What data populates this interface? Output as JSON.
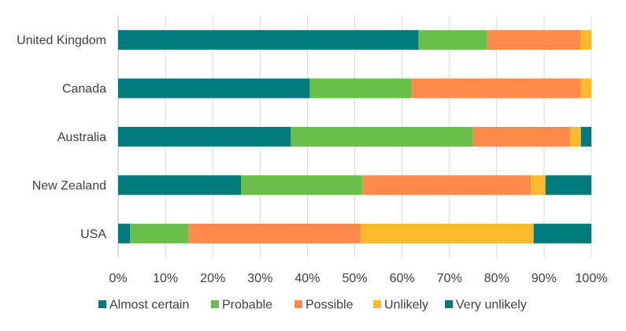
{
  "chart_data": {
    "type": "bar",
    "orientation": "horizontal",
    "stacked": "percent",
    "categories": [
      "United Kingdom",
      "Canada",
      "Australia",
      "New Zealand",
      "USA"
    ],
    "series": [
      {
        "name": "Almost certain",
        "color": "#007a7a",
        "values": [
          63.5,
          40.5,
          36.5,
          26.0,
          2.5
        ]
      },
      {
        "name": "Probable",
        "color": "#6abf4b",
        "values": [
          14.5,
          21.5,
          38.5,
          25.7,
          12.3
        ]
      },
      {
        "name": "Possible",
        "color": "#ff8a4c",
        "values": [
          19.7,
          35.8,
          20.5,
          35.5,
          36.5
        ]
      },
      {
        "name": "Unlikely",
        "color": "#fdb92c",
        "values": [
          2.3,
          2.2,
          2.3,
          3.1,
          36.5
        ]
      },
      {
        "name": "Very unlikely",
        "color": "#007a7a",
        "values": [
          0.0,
          0.0,
          2.2,
          9.7,
          12.2
        ]
      }
    ],
    "xlim": [
      0,
      100
    ],
    "xticks": [
      "0%",
      "10%",
      "20%",
      "30%",
      "40%",
      "50%",
      "60%",
      "70%",
      "80%",
      "90%",
      "100%"
    ],
    "grid": "vertical",
    "legend": "bottom",
    "title": "",
    "xlabel": "",
    "ylabel": ""
  }
}
